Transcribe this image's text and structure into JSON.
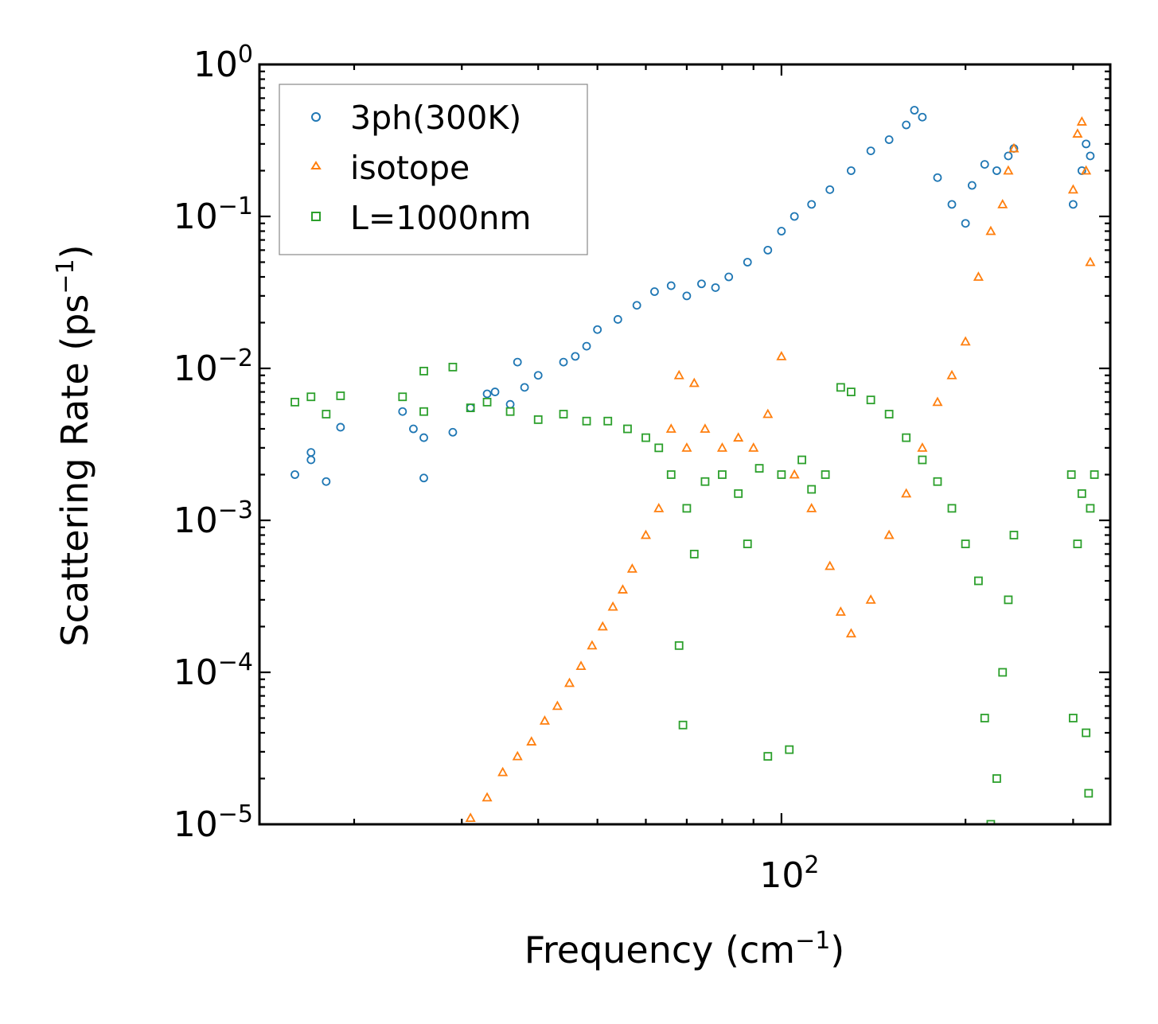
{
  "chart_data": {
    "type": "scatter",
    "xscale": "log",
    "yscale": "log",
    "xlabel": "Frequency (cm",
    "xlabel_exp": "−1",
    "xlabel_suffix": ")",
    "ylabel": "Scattering Rate (ps",
    "ylabel_exp": "−1",
    "ylabel_suffix": ")",
    "xlim": [
      14,
      345
    ],
    "ylim": [
      1e-05,
      1
    ],
    "x_major_ticks": [
      {
        "value": 100,
        "base": "10",
        "exp": "2"
      }
    ],
    "x_minor_ticks": [
      20,
      30,
      40,
      50,
      60,
      70,
      80,
      90,
      200,
      300
    ],
    "y_major_ticks": [
      {
        "value": 1,
        "base": "10",
        "exp": "0"
      },
      {
        "value": 0.1,
        "base": "10",
        "exp": "−1"
      },
      {
        "value": 0.01,
        "base": "10",
        "exp": "−2"
      },
      {
        "value": 0.001,
        "base": "10",
        "exp": "−3"
      },
      {
        "value": 0.0001,
        "base": "10",
        "exp": "−4"
      },
      {
        "value": 1e-05,
        "base": "10",
        "exp": "−5"
      }
    ],
    "legend_position": "top-left",
    "series": [
      {
        "name": "3ph(300K)",
        "marker": "circle",
        "color": "#1f77b4",
        "points": [
          [
            16,
            0.002
          ],
          [
            17,
            0.0028
          ],
          [
            17,
            0.0025
          ],
          [
            18,
            0.0018
          ],
          [
            19,
            0.0041
          ],
          [
            24,
            0.0052
          ],
          [
            25,
            0.004
          ],
          [
            26,
            0.0035
          ],
          [
            26,
            0.0019
          ],
          [
            29,
            0.0038
          ],
          [
            31,
            0.0055
          ],
          [
            33,
            0.0068
          ],
          [
            34,
            0.007
          ],
          [
            36,
            0.0058
          ],
          [
            37,
            0.011
          ],
          [
            38,
            0.0075
          ],
          [
            40,
            0.009
          ],
          [
            44,
            0.011
          ],
          [
            46,
            0.012
          ],
          [
            48,
            0.014
          ],
          [
            50,
            0.018
          ],
          [
            54,
            0.021
          ],
          [
            58,
            0.026
          ],
          [
            62,
            0.032
          ],
          [
            66,
            0.035
          ],
          [
            70,
            0.03
          ],
          [
            74,
            0.036
          ],
          [
            78,
            0.034
          ],
          [
            82,
            0.04
          ],
          [
            88,
            0.05
          ],
          [
            95,
            0.06
          ],
          [
            100,
            0.08
          ],
          [
            105,
            0.1
          ],
          [
            112,
            0.12
          ],
          [
            120,
            0.15
          ],
          [
            130,
            0.2
          ],
          [
            140,
            0.27
          ],
          [
            150,
            0.32
          ],
          [
            160,
            0.4
          ],
          [
            165,
            0.5
          ],
          [
            170,
            0.45
          ],
          [
            180,
            0.18
          ],
          [
            190,
            0.12
          ],
          [
            200,
            0.09
          ],
          [
            205,
            0.16
          ],
          [
            215,
            0.22
          ],
          [
            225,
            0.2
          ],
          [
            235,
            0.25
          ],
          [
            240,
            0.28
          ],
          [
            300,
            0.12
          ],
          [
            310,
            0.2
          ],
          [
            315,
            0.3
          ],
          [
            320,
            0.25
          ]
        ]
      },
      {
        "name": "isotope",
        "marker": "triangle",
        "color": "#ff7f0e",
        "points": [
          [
            31,
            1.1e-05
          ],
          [
            33,
            1.5e-05
          ],
          [
            35,
            2.2e-05
          ],
          [
            37,
            2.8e-05
          ],
          [
            39,
            3.5e-05
          ],
          [
            41,
            4.8e-05
          ],
          [
            43,
            6e-05
          ],
          [
            45,
            8.5e-05
          ],
          [
            47,
            0.00011
          ],
          [
            49,
            0.00015
          ],
          [
            51,
            0.0002
          ],
          [
            53,
            0.00027
          ],
          [
            55,
            0.00035
          ],
          [
            57,
            0.00048
          ],
          [
            60,
            0.0008
          ],
          [
            63,
            0.0012
          ],
          [
            66,
            0.004
          ],
          [
            68,
            0.009
          ],
          [
            70,
            0.003
          ],
          [
            72,
            0.008
          ],
          [
            75,
            0.004
          ],
          [
            80,
            0.003
          ],
          [
            85,
            0.0035
          ],
          [
            90,
            0.003
          ],
          [
            95,
            0.005
          ],
          [
            100,
            0.012
          ],
          [
            105,
            0.002
          ],
          [
            112,
            0.0012
          ],
          [
            120,
            0.0005
          ],
          [
            125,
            0.00025
          ],
          [
            130,
            0.00018
          ],
          [
            140,
            0.0003
          ],
          [
            150,
            0.0008
          ],
          [
            160,
            0.0015
          ],
          [
            170,
            0.003
          ],
          [
            180,
            0.006
          ],
          [
            190,
            0.009
          ],
          [
            200,
            0.015
          ],
          [
            210,
            0.04
          ],
          [
            220,
            0.08
          ],
          [
            230,
            0.12
          ],
          [
            235,
            0.2
          ],
          [
            240,
            0.28
          ],
          [
            300,
            0.15
          ],
          [
            305,
            0.35
          ],
          [
            310,
            0.42
          ],
          [
            315,
            0.2
          ],
          [
            320,
            0.05
          ]
        ]
      },
      {
        "name": "L=1000nm",
        "marker": "square",
        "color": "#2ca02c",
        "points": [
          [
            16,
            0.006
          ],
          [
            17,
            0.0065
          ],
          [
            18,
            0.005
          ],
          [
            19,
            0.0066
          ],
          [
            24,
            0.0065
          ],
          [
            26,
            0.0052
          ],
          [
            26,
            0.0096
          ],
          [
            29,
            0.0102
          ],
          [
            31,
            0.0055
          ],
          [
            33,
            0.006
          ],
          [
            36,
            0.0052
          ],
          [
            40,
            0.0046
          ],
          [
            44,
            0.005
          ],
          [
            48,
            0.0045
          ],
          [
            52,
            0.0045
          ],
          [
            56,
            0.004
          ],
          [
            60,
            0.0035
          ],
          [
            63,
            0.003
          ],
          [
            66,
            0.002
          ],
          [
            68,
            0.00015
          ],
          [
            69,
            4.5e-05
          ],
          [
            70,
            0.0012
          ],
          [
            72,
            0.0006
          ],
          [
            75,
            0.0018
          ],
          [
            80,
            0.002
          ],
          [
            85,
            0.0015
          ],
          [
            88,
            0.0007
          ],
          [
            92,
            0.0022
          ],
          [
            95,
            2.8e-05
          ],
          [
            100,
            0.002
          ],
          [
            103,
            3.1e-05
          ],
          [
            108,
            0.0025
          ],
          [
            112,
            0.0016
          ],
          [
            118,
            0.002
          ],
          [
            125,
            0.0075
          ],
          [
            130,
            0.007
          ],
          [
            140,
            0.0062
          ],
          [
            150,
            0.005
          ],
          [
            160,
            0.0035
          ],
          [
            170,
            0.0025
          ],
          [
            180,
            0.0018
          ],
          [
            190,
            0.0012
          ],
          [
            200,
            0.0007
          ],
          [
            210,
            0.0004
          ],
          [
            215,
            5e-05
          ],
          [
            220,
            1e-05
          ],
          [
            225,
            2e-05
          ],
          [
            230,
            0.0001
          ],
          [
            235,
            0.0003
          ],
          [
            240,
            0.0008
          ],
          [
            298,
            0.002
          ],
          [
            300,
            5e-05
          ],
          [
            305,
            0.0007
          ],
          [
            310,
            0.0015
          ],
          [
            315,
            4e-05
          ],
          [
            318,
            1.6e-05
          ],
          [
            320,
            0.0012
          ],
          [
            325,
            0.002
          ]
        ]
      }
    ]
  }
}
